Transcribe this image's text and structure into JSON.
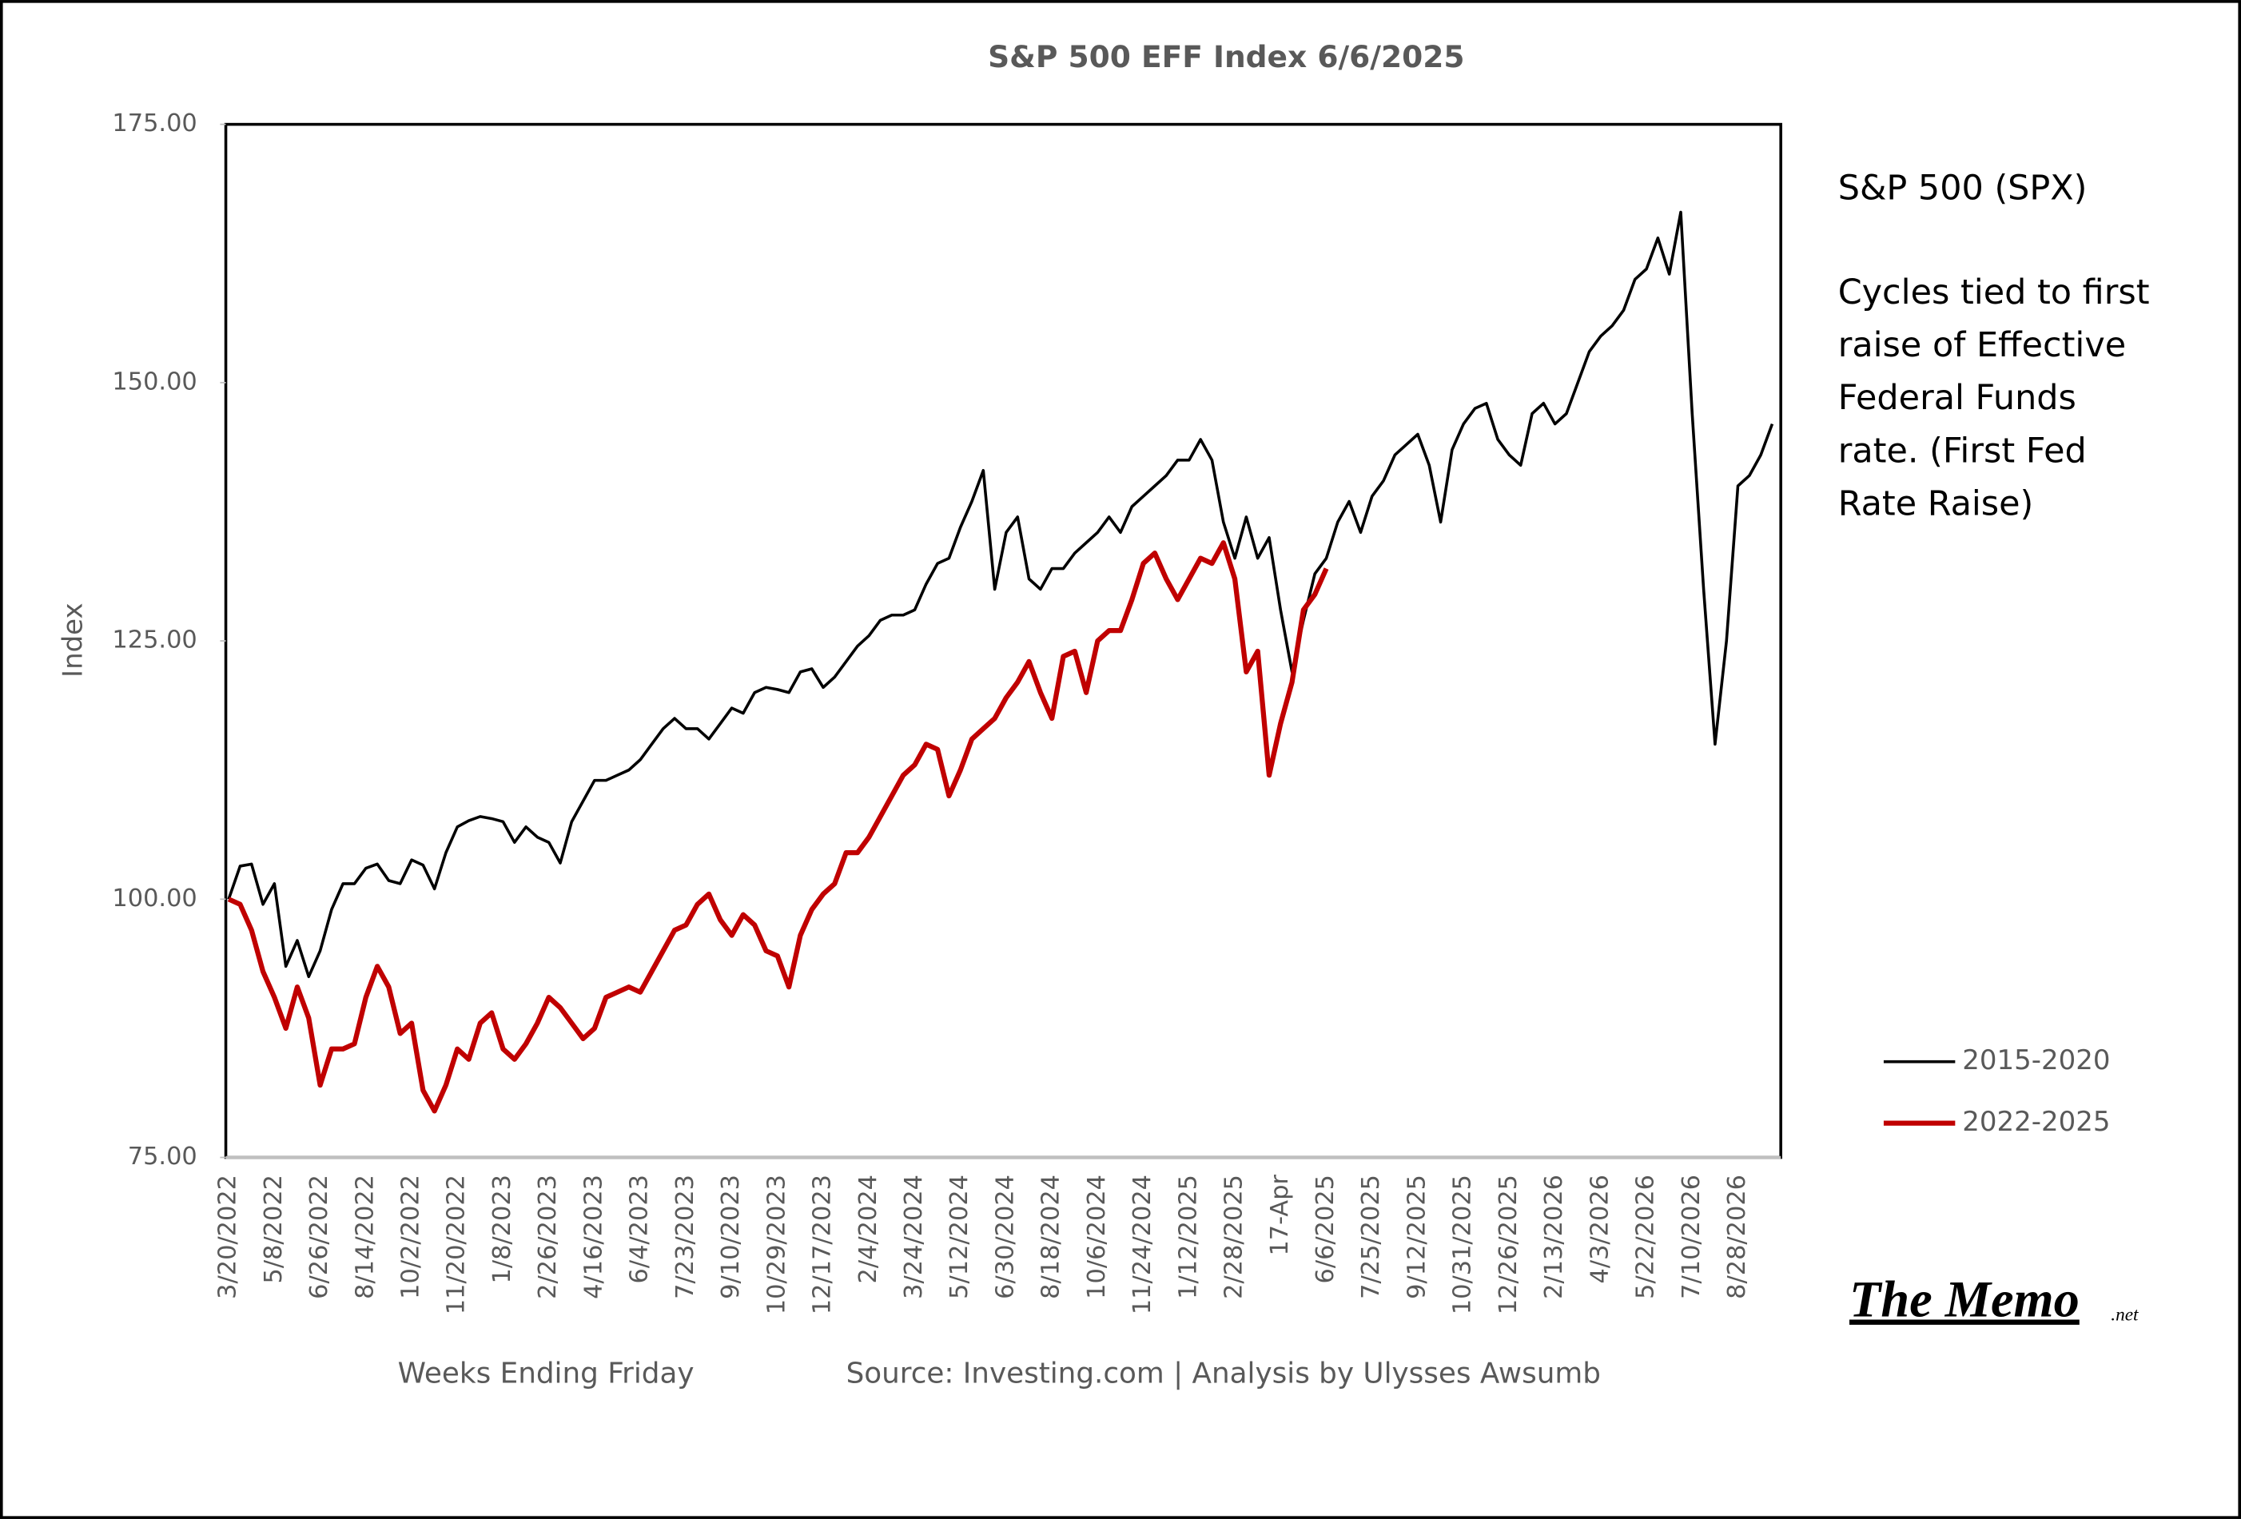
{
  "chart_data": {
    "type": "line",
    "title": "S&P 500 EFF Index  6/6/2025",
    "y_label": "Index",
    "x_label": "Weeks Ending Friday",
    "source": "Source: Investing.com | Analysis by Ulysses Awsumb",
    "annotation_title": "S&P 500 (SPX)",
    "annotation_lines": [
      "Cycles tied to first",
      "raise of Effective",
      "Federal Funds",
      "rate. (First Fed",
      "Rate Raise)"
    ],
    "logo": "The Memo",
    "logo_suffix": ".net",
    "legend": "right",
    "grid": false,
    "ylim": [
      75,
      175
    ],
    "yticks": [
      {
        "value": 75,
        "label": "75.00"
      },
      {
        "value": 100,
        "label": "100.00"
      },
      {
        "value": 125,
        "label": "125.00"
      },
      {
        "value": 150,
        "label": "150.00"
      },
      {
        "value": 175,
        "label": "175.00"
      }
    ],
    "categories": [
      "3/20/2022",
      null,
      null,
      null,
      "5/8/2022",
      null,
      null,
      null,
      "6/26/2022",
      null,
      null,
      null,
      "8/14/2022",
      null,
      null,
      null,
      "10/2/2022",
      null,
      null,
      null,
      "11/20/2022",
      null,
      null,
      null,
      "1/8/2023",
      null,
      null,
      null,
      "2/26/2023",
      null,
      null,
      null,
      "4/16/2023",
      null,
      null,
      null,
      "6/4/2023",
      null,
      null,
      null,
      "7/23/2023",
      null,
      null,
      null,
      "9/10/2023",
      null,
      null,
      null,
      "10/29/2023",
      null,
      null,
      null,
      "12/17/2023",
      null,
      null,
      null,
      "2/4/2024",
      null,
      null,
      null,
      "3/24/2024",
      null,
      null,
      null,
      "5/12/2024",
      null,
      null,
      null,
      "6/30/2024",
      null,
      null,
      null,
      "8/18/2024",
      null,
      null,
      null,
      "10/6/2024",
      null,
      null,
      null,
      "11/24/2024",
      null,
      null,
      null,
      "1/12/2025",
      null,
      null,
      null,
      "2/28/2025",
      null,
      null,
      null,
      "17-Apr",
      null,
      null,
      null,
      "6/6/2025",
      null,
      null,
      null,
      "7/25/2025",
      null,
      null,
      null,
      "9/12/2025",
      null,
      null,
      null,
      "10/31/2025",
      null,
      null,
      null,
      "12/26/2025",
      null,
      null,
      null,
      "2/13/2026",
      null,
      null,
      null,
      "4/3/2026",
      null,
      null,
      null,
      "5/22/2026",
      null,
      null,
      null,
      "7/10/2026",
      null,
      null,
      null,
      "8/28/2026",
      null,
      null,
      null
    ],
    "series": [
      {
        "name": "2015-2020",
        "color": "#000000",
        "width": 2,
        "values": [
          100,
          103.2,
          103.4,
          99.5,
          101.5,
          93.5,
          96,
          92.5,
          95,
          99,
          101.5,
          101.5,
          103,
          103.4,
          101.8,
          101.5,
          103.8,
          103.3,
          101,
          104.5,
          107,
          107.6,
          108,
          107.8,
          107.5,
          105.5,
          107,
          106,
          105.5,
          103.5,
          107.5,
          109.5,
          111.5,
          111.5,
          112,
          112.5,
          113.5,
          115,
          116.5,
          117.5,
          116.5,
          116.5,
          115.5,
          117,
          118.5,
          118,
          120,
          120.5,
          120.3,
          120,
          122,
          122.3,
          120.5,
          121.5,
          123,
          124.5,
          125.5,
          127,
          127.5,
          127.5,
          128,
          130.5,
          132.5,
          133,
          136,
          138.5,
          141.5,
          130,
          135.5,
          137,
          131,
          130,
          132,
          132,
          133.5,
          134.5,
          135.5,
          137,
          135.5,
          138,
          139,
          140,
          141,
          142.5,
          142.5,
          144.5,
          142.5,
          136.5,
          133,
          137,
          133,
          135,
          128,
          122,
          127,
          131.5,
          133,
          136.5,
          138.5,
          135.5,
          139,
          140.5,
          143,
          144,
          145,
          142,
          136.5,
          143.5,
          146,
          147.5,
          148,
          144.5,
          143,
          142,
          147,
          148,
          146,
          147,
          150,
          153,
          154.5,
          155.5,
          157,
          160,
          161,
          164,
          160.5,
          166.5,
          147,
          130,
          115,
          125,
          140,
          141,
          143,
          146
        ]
      },
      {
        "name": "2022-2025",
        "color": "#c00000",
        "width": 3.5,
        "values": [
          100,
          99.5,
          97,
          93,
          90.5,
          87.5,
          91.5,
          88.5,
          82,
          85.5,
          85.5,
          86,
          90.5,
          93.5,
          91.5,
          87,
          88,
          81.5,
          79.5,
          82,
          85.5,
          84.5,
          88,
          89,
          85.5,
          84.5,
          86,
          88,
          90.5,
          89.5,
          88,
          86.5,
          87.5,
          90.5,
          91,
          91.5,
          91,
          93,
          95,
          97,
          97.5,
          99.5,
          100.5,
          98,
          96.5,
          98.5,
          97.5,
          95,
          94.5,
          91.5,
          96.5,
          99,
          100.5,
          101.5,
          104.5,
          104.5,
          106,
          108,
          110,
          112,
          113,
          115,
          114.5,
          110,
          112.5,
          115.5,
          116.5,
          117.5,
          119.5,
          121,
          123,
          120,
          117.5,
          123.5,
          124,
          120,
          125,
          126,
          126,
          129,
          132.5,
          133.5,
          131,
          129,
          131,
          133,
          132.5,
          134.5,
          131,
          122,
          124,
          112,
          117,
          121,
          128,
          129.5,
          132,
          null,
          null,
          null,
          null,
          null,
          null,
          null,
          null,
          null,
          null,
          null,
          null,
          null,
          null,
          null,
          null,
          null,
          null,
          null,
          null,
          null,
          null,
          null,
          null,
          null,
          null,
          null,
          null,
          null,
          null,
          null,
          null,
          null,
          null,
          null,
          null,
          null,
          null,
          null
        ]
      }
    ]
  }
}
